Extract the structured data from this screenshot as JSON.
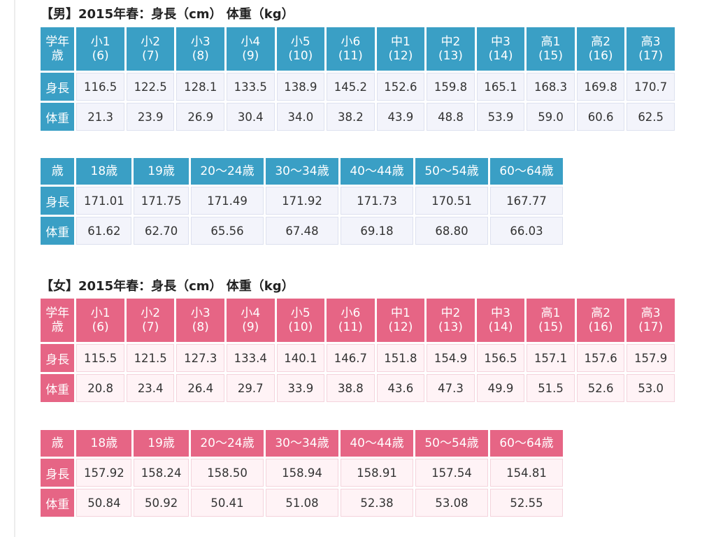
{
  "male": {
    "title": "【男】2015年春：身長（cm） 体重（kg）",
    "school": {
      "header": [
        {
          "top": "学年",
          "bottom": "歳"
        },
        {
          "top": "小1",
          "bottom": "(6)"
        },
        {
          "top": "小2",
          "bottom": "(7)"
        },
        {
          "top": "小3",
          "bottom": "(8)"
        },
        {
          "top": "小4",
          "bottom": "(9)"
        },
        {
          "top": "小5",
          "bottom": "(10)"
        },
        {
          "top": "小6",
          "bottom": "(11)"
        },
        {
          "top": "中1",
          "bottom": "(12)"
        },
        {
          "top": "中2",
          "bottom": "(13)"
        },
        {
          "top": "中3",
          "bottom": "(14)"
        },
        {
          "top": "高1",
          "bottom": "(15)"
        },
        {
          "top": "高2",
          "bottom": "(16)"
        },
        {
          "top": "高3",
          "bottom": "(17)"
        }
      ],
      "rows": [
        {
          "label": "身長",
          "values": [
            "116.5",
            "122.5",
            "128.1",
            "133.5",
            "138.9",
            "145.2",
            "152.6",
            "159.8",
            "165.1",
            "168.3",
            "169.8",
            "170.7"
          ]
        },
        {
          "label": "体重",
          "values": [
            "21.3",
            "23.9",
            "26.9",
            "30.4",
            "34.0",
            "38.2",
            "43.9",
            "48.8",
            "53.9",
            "59.0",
            "60.6",
            "62.5"
          ]
        }
      ]
    },
    "adult": {
      "header": [
        "歳",
        "18歳",
        "19歳",
        "20〜24歳",
        "30〜34歳",
        "40〜44歳",
        "50〜54歳",
        "60〜64歳"
      ],
      "rows": [
        {
          "label": "身長",
          "values": [
            "171.01",
            "171.75",
            "171.49",
            "171.92",
            "171.73",
            "170.51",
            "167.77"
          ]
        },
        {
          "label": "体重",
          "values": [
            "61.62",
            "62.70",
            "65.56",
            "67.48",
            "69.18",
            "68.80",
            "66.03"
          ]
        }
      ]
    }
  },
  "female": {
    "title": "【女】2015年春：身長（cm） 体重（kg）",
    "school": {
      "header": [
        {
          "top": "学年",
          "bottom": "歳"
        },
        {
          "top": "小1",
          "bottom": "(6)"
        },
        {
          "top": "小2",
          "bottom": "(7)"
        },
        {
          "top": "小3",
          "bottom": "(8)"
        },
        {
          "top": "小4",
          "bottom": "(9)"
        },
        {
          "top": "小5",
          "bottom": "(10)"
        },
        {
          "top": "小6",
          "bottom": "(11)"
        },
        {
          "top": "中1",
          "bottom": "(12)"
        },
        {
          "top": "中2",
          "bottom": "(13)"
        },
        {
          "top": "中3",
          "bottom": "(14)"
        },
        {
          "top": "高1",
          "bottom": "(15)"
        },
        {
          "top": "高2",
          "bottom": "(16)"
        },
        {
          "top": "高3",
          "bottom": "(17)"
        }
      ],
      "rows": [
        {
          "label": "身長",
          "values": [
            "115.5",
            "121.5",
            "127.3",
            "133.4",
            "140.1",
            "146.7",
            "151.8",
            "154.9",
            "156.5",
            "157.1",
            "157.6",
            "157.9"
          ]
        },
        {
          "label": "体重",
          "values": [
            "20.8",
            "23.4",
            "26.4",
            "29.7",
            "33.9",
            "38.8",
            "43.6",
            "47.3",
            "49.9",
            "51.5",
            "52.6",
            "53.0"
          ]
        }
      ]
    },
    "adult": {
      "header": [
        "歳",
        "18歳",
        "19歳",
        "20〜24歳",
        "30〜34歳",
        "40〜44歳",
        "50〜54歳",
        "60〜64歳"
      ],
      "rows": [
        {
          "label": "身長",
          "values": [
            "157.92",
            "158.24",
            "158.50",
            "158.94",
            "158.91",
            "157.54",
            "154.81"
          ]
        },
        {
          "label": "体重",
          "values": [
            "50.84",
            "50.92",
            "50.41",
            "51.08",
            "52.38",
            "53.08",
            "52.55"
          ]
        }
      ]
    }
  },
  "colors": {
    "male_header": "#3a9fc5",
    "female_header": "#e66585",
    "male_cell": "#f3f4fb",
    "female_cell": "#fff3f6"
  }
}
